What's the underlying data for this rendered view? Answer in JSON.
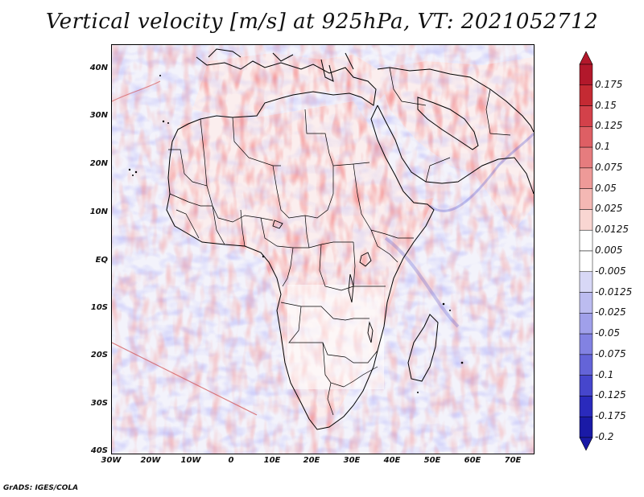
{
  "title": "Vertical velocity [m/s] at 925hPa, VT: 2021052712",
  "variable": "Vertical velocity",
  "units": "m/s",
  "level": "925hPa",
  "valid_time": "2021052712",
  "lat_labels": [
    "40N",
    "30N",
    "20N",
    "10N",
    "EQ",
    "10S",
    "20S",
    "30S",
    "40S"
  ],
  "lon_labels": [
    "30W",
    "20W",
    "10W",
    "0",
    "10E",
    "20E",
    "30E",
    "40E",
    "50E",
    "60E",
    "70E"
  ],
  "colorbar": {
    "labels": [
      "0.175",
      "0.15",
      "0.125",
      "0.1",
      "0.075",
      "0.05",
      "0.025",
      "0.0125",
      "0.005",
      "-0.005",
      "-0.0125",
      "-0.025",
      "-0.05",
      "-0.075",
      "-0.1",
      "-0.125",
      "-0.175",
      "-0.2"
    ],
    "colors": [
      "#b2182b",
      "#c42a33",
      "#d3414a",
      "#de5f64",
      "#e67c7e",
      "#ee9a98",
      "#f4b8b4",
      "#f9d6d2",
      "#ffffff",
      "#ffffff",
      "#d8d8f6",
      "#bcbcf0",
      "#a0a0ea",
      "#8282e2",
      "#6464d8",
      "#4646cc",
      "#2a2abc",
      "#1a1aa6"
    ]
  },
  "footer": "GrADS: IGES/COLA"
}
